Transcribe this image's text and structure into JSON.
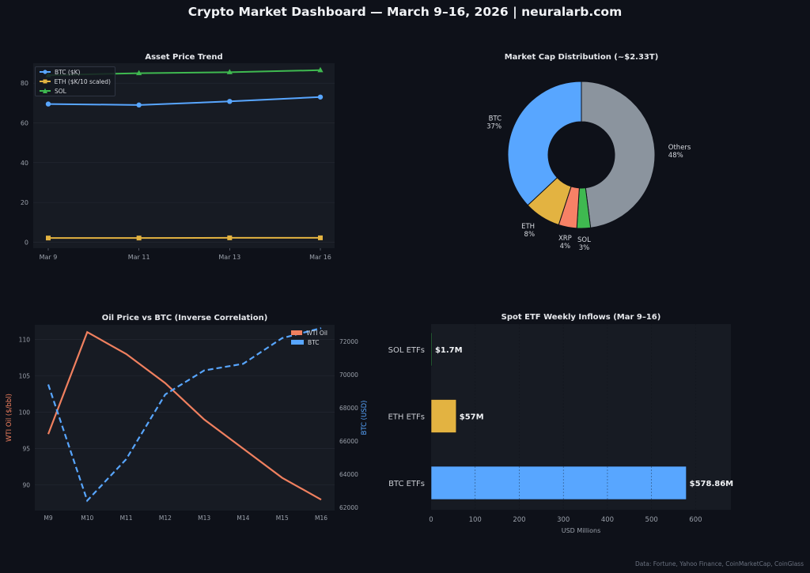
{
  "header": {
    "title": "Crypto Market Dashboard — March 9–16, 2026 | neuralarb.com",
    "footer": "Data: Fortune, Yahoo Finance, CoinMarketCap, CoinGlass"
  },
  "colors": {
    "background": "#0e1119",
    "panel": "#171b23",
    "grid": "#262b35",
    "btc": "#58a6ff",
    "eth": "#e3b341",
    "sol": "#3fb950",
    "xrp": "#f78166",
    "others": "#8b949e",
    "oil": "#f0805f"
  },
  "chart_data": [
    {
      "id": "price-trend",
      "type": "line",
      "title": "Asset Price Trend",
      "categories": [
        "Mar 9",
        "Mar 11",
        "Mar 13",
        "Mar 16"
      ],
      "ylim": [
        -3,
        90
      ],
      "yticks": [
        0,
        20,
        40,
        60,
        80
      ],
      "grid": true,
      "legend_position": "top-left",
      "series": [
        {
          "name": "BTC ($K)",
          "values": [
            69.5,
            69.0,
            70.8,
            73.0
          ],
          "color": "#58a6ff",
          "marker": "circle"
        },
        {
          "name": "ETH ($K/10 scaled)",
          "values": [
            2.1,
            2.1,
            2.2,
            2.2
          ],
          "color": "#e3b341",
          "marker": "square"
        },
        {
          "name": "SOL",
          "values": [
            84.0,
            85.0,
            85.5,
            86.5
          ],
          "color": "#3fb950",
          "marker": "triangle"
        }
      ]
    },
    {
      "id": "market-cap",
      "type": "pie",
      "title": "Market Cap Distribution (~$2.33T)",
      "slices": [
        {
          "label": "Others",
          "pct_label": "48%",
          "value": 48,
          "color": "#8b949e"
        },
        {
          "label": "SOL",
          "pct_label": "3%",
          "value": 3,
          "color": "#3fb950"
        },
        {
          "label": "XRP",
          "pct_label": "4%",
          "value": 4,
          "color": "#f78166"
        },
        {
          "label": "ETH",
          "pct_label": "8%",
          "value": 8,
          "color": "#e3b341"
        },
        {
          "label": "BTC",
          "pct_label": "37%",
          "value": 37,
          "color": "#58a6ff"
        }
      ]
    },
    {
      "id": "oil-btc",
      "type": "line",
      "title": "Oil Price vs BTC (Inverse Correlation)",
      "categories": [
        "M9",
        "M10",
        "M11",
        "M12",
        "M13",
        "M14",
        "M15",
        "M16"
      ],
      "ylabel": "WTI Oil ($/bbl)",
      "ylim": [
        86.5,
        112
      ],
      "yticks": [
        90,
        95,
        100,
        105,
        110
      ],
      "y2label": "BTC (USD)",
      "y2lim": [
        61800,
        73000
      ],
      "y2ticks": [
        62000,
        64000,
        66000,
        68000,
        70000,
        72000
      ],
      "legend_position": "top-right",
      "series": [
        {
          "name": "WTI Oil",
          "axis": "left",
          "values": [
            97,
            111,
            108,
            104,
            99,
            95,
            91,
            88
          ],
          "color": "#f0805f",
          "dash": false
        },
        {
          "name": "BTC",
          "axis": "right",
          "values": [
            69400,
            62400,
            64900,
            68800,
            70250,
            70650,
            72200,
            72800
          ],
          "color": "#58a6ff",
          "dash": true
        }
      ]
    },
    {
      "id": "etf-inflows",
      "type": "bar",
      "orientation": "horizontal",
      "title": "Spot ETF Weekly Inflows (Mar 9–16)",
      "xlabel": "USD Millions",
      "xlim": [
        0,
        680
      ],
      "xticks": [
        0,
        100,
        200,
        300,
        400,
        500,
        600
      ],
      "categories": [
        "SOL ETFs",
        "ETH ETFs",
        "BTC ETFs"
      ],
      "values": [
        1.7,
        57,
        578.86
      ],
      "value_labels": [
        "$1.7M",
        "$57M",
        "$578.86M"
      ],
      "colors": [
        "#3fb950",
        "#e3b341",
        "#58a6ff"
      ]
    }
  ]
}
